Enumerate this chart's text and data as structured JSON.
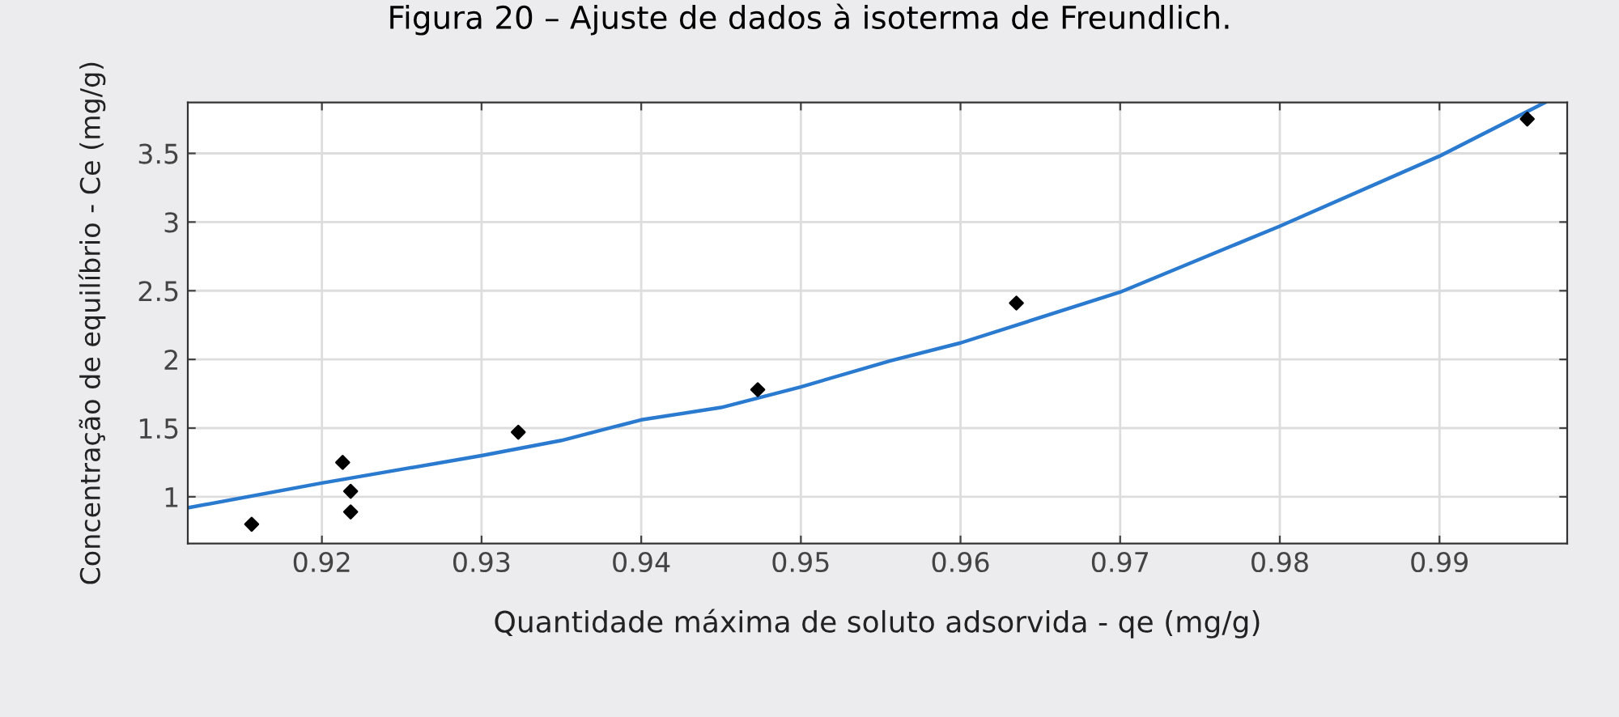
{
  "chart_data": {
    "type": "scatter",
    "title": "Figura 20 – Ajuste de dados à isoterma de Freundlich.",
    "xlabel": "Quantidade máxima de soluto adsorvida - qe (mg/g)",
    "ylabel": "Concentração de equilíbrio - Ce (mg/g)",
    "series": [
      {
        "color": "#000000",
        "marker": "diamond",
        "x": [
          0.9156,
          0.9213,
          0.9218,
          0.9218,
          0.9323,
          0.9473,
          0.9635,
          0.9955
        ],
        "values": [
          0.8,
          1.25,
          1.04,
          0.89,
          1.47,
          1.78,
          2.41,
          3.75
        ]
      },
      {
        "type": "line",
        "color": "#2a7ad0",
        "marker": "none",
        "line_style": "solid",
        "x": [
          0.9116,
          0.92,
          0.925,
          0.93,
          0.935,
          0.94,
          0.945,
          0.95,
          0.9556,
          0.96,
          0.97,
          0.98,
          0.99,
          0.9966
        ],
        "values": [
          0.92,
          1.1,
          1.2,
          1.3,
          1.41,
          1.56,
          1.65,
          1.8,
          1.99,
          2.12,
          2.49,
          2.97,
          3.48,
          3.87
        ]
      }
    ],
    "xlim": [
      0.9116,
      0.998
    ],
    "ylim": [
      0.66,
      3.87
    ],
    "xticks": [
      0.92,
      0.93,
      0.94,
      0.95,
      0.96,
      0.97,
      0.98,
      0.99
    ],
    "yticks": [
      1,
      1.5,
      2,
      2.5,
      3,
      3.5
    ],
    "grid": true,
    "legend": false
  }
}
